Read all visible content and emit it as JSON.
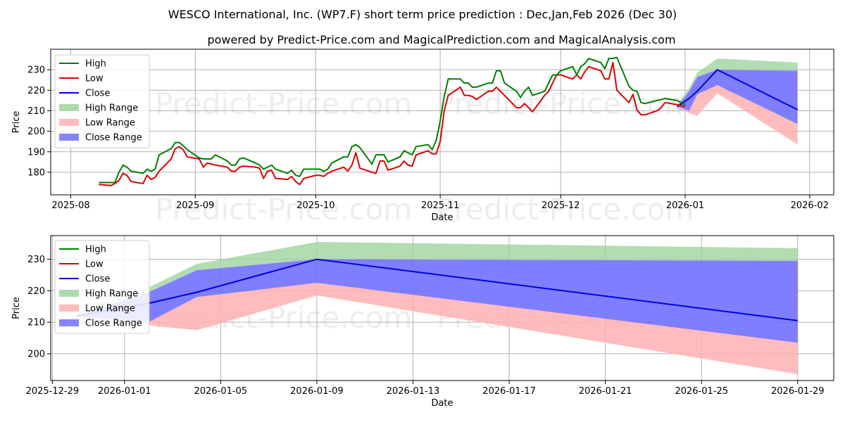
{
  "chart_data": {
    "type": "line",
    "title": "WESCO International, Inc. (WP7.F) short term price prediction : Dec,Jan,Feb 2026 (Dec 30)",
    "subtitle": "powered by Predict-Price.com and MagicalPrediction.com and MagicalAnalysis.com",
    "watermark": "Predict-Price.com",
    "colors": {
      "high": "#008000",
      "low": "#e00000",
      "close": "#0000e0",
      "high_range": "#9fd39f",
      "low_range": "#ffb0b0",
      "close_range": "#7070ff"
    },
    "legend": [
      "High",
      "Low",
      "Close",
      "High Range",
      "Low Range",
      "Close Range"
    ],
    "panels": [
      {
        "id": "overview",
        "xlabel": "Date",
        "ylabel": "Price",
        "x_ticks": [
          "2025-08",
          "2025-09",
          "2025-10",
          "2025-11",
          "2025-12",
          "2026-01",
          "2026-02"
        ],
        "y_ticks": [
          180,
          190,
          200,
          210,
          220,
          230
        ],
        "xlim": [
          "2025-07-27",
          "2026-02-07"
        ],
        "ylim": [
          169,
          240
        ],
        "history": [
          [
            "2025-08-08",
            175,
            174,
            174.5
          ],
          [
            "2025-08-11",
            175,
            173.5,
            174
          ],
          [
            "2025-08-12",
            175,
            174.5,
            175
          ],
          [
            "2025-08-13",
            180,
            176,
            178
          ],
          [
            "2025-08-14",
            183.5,
            179.5,
            181
          ],
          [
            "2025-08-15",
            182.5,
            178.5,
            180
          ],
          [
            "2025-08-16",
            180.5,
            175.5,
            177
          ],
          [
            "2025-08-19",
            179.5,
            174.5,
            176
          ],
          [
            "2025-08-20",
            181.5,
            178.5,
            180
          ],
          [
            "2025-08-21",
            180.5,
            176.5,
            178
          ],
          [
            "2025-08-22",
            181.5,
            177.5,
            179
          ],
          [
            "2025-08-23",
            188.5,
            180.5,
            185
          ],
          [
            "2025-08-26",
            191.5,
            186.5,
            189
          ],
          [
            "2025-08-27",
            194.5,
            191.5,
            193
          ],
          [
            "2025-08-28",
            194.5,
            192.5,
            193
          ],
          [
            "2025-08-29",
            193,
            191,
            192
          ],
          [
            "2025-08-30",
            191,
            187.5,
            189
          ],
          [
            "2025-09-02",
            187,
            186.5,
            187
          ],
          [
            "2025-09-03",
            186.5,
            182.5,
            184
          ],
          [
            "2025-09-04",
            186.5,
            184.5,
            185
          ],
          [
            "2025-09-05",
            186.5,
            184,
            185
          ],
          [
            "2025-09-06",
            188.5,
            183.5,
            186
          ],
          [
            "2025-09-09",
            185.5,
            182.5,
            184
          ],
          [
            "2025-09-10",
            183.5,
            180.5,
            182
          ],
          [
            "2025-09-11",
            183.5,
            180.5,
            182
          ],
          [
            "2025-09-12",
            186.5,
            182.5,
            184
          ],
          [
            "2025-09-13",
            187,
            183,
            185
          ],
          [
            "2025-09-16",
            184.5,
            182.5,
            183
          ],
          [
            "2025-09-17",
            183.5,
            182,
            182.5
          ],
          [
            "2025-09-18",
            181.5,
            177,
            179
          ],
          [
            "2025-09-19",
            182.5,
            180.5,
            181
          ],
          [
            "2025-09-20",
            183.5,
            181,
            182
          ],
          [
            "2025-09-21",
            181.5,
            177,
            179
          ],
          [
            "2025-09-24",
            179.5,
            176.5,
            178
          ],
          [
            "2025-09-25",
            181,
            178,
            179.5
          ],
          [
            "2025-09-26",
            178.5,
            175.5,
            177
          ],
          [
            "2025-09-27",
            178,
            174,
            176
          ],
          [
            "2025-09-28",
            181.5,
            177,
            179
          ],
          [
            "2025-10-01",
            181.5,
            178.5,
            180
          ],
          [
            "2025-10-02",
            181.5,
            178.5,
            180
          ],
          [
            "2025-10-03",
            180.5,
            178,
            179
          ],
          [
            "2025-10-04",
            181.5,
            179.5,
            180.5
          ],
          [
            "2025-10-05",
            184.5,
            180.5,
            182
          ],
          [
            "2025-10-08",
            187.5,
            182.5,
            185
          ],
          [
            "2025-10-09",
            187.5,
            180.5,
            184
          ],
          [
            "2025-10-10",
            192.5,
            183.5,
            188
          ],
          [
            "2025-10-11",
            193.5,
            189.5,
            191
          ],
          [
            "2025-10-12",
            192,
            182,
            186
          ],
          [
            "2025-10-15",
            184,
            180,
            182
          ],
          [
            "2025-10-16",
            188.5,
            179.5,
            184
          ],
          [
            "2025-10-17",
            188.5,
            185.5,
            187
          ],
          [
            "2025-10-18",
            188.5,
            185.5,
            187
          ],
          [
            "2025-10-19",
            185,
            181,
            183
          ],
          [
            "2025-10-22",
            187.5,
            183,
            185
          ],
          [
            "2025-10-23",
            190.5,
            185.5,
            188
          ],
          [
            "2025-10-24",
            189.5,
            183.5,
            186
          ],
          [
            "2025-10-25",
            188.5,
            183,
            186
          ],
          [
            "2025-10-26",
            192.5,
            188.5,
            190
          ],
          [
            "2025-10-29",
            193.5,
            190.5,
            192
          ],
          [
            "2025-10-30",
            191,
            189,
            190
          ],
          [
            "2025-10-31",
            195.5,
            189,
            192
          ],
          [
            "2025-11-01",
            205,
            195,
            200
          ],
          [
            "2025-11-02",
            217,
            210,
            214
          ],
          [
            "2025-11-03",
            225.5,
            217.5,
            221
          ],
          [
            "2025-11-06",
            225.5,
            221.5,
            223
          ],
          [
            "2025-11-07",
            223.5,
            217.5,
            220
          ],
          [
            "2025-11-08",
            223.5,
            217.5,
            220
          ],
          [
            "2025-11-09",
            221.5,
            217,
            219
          ],
          [
            "2025-11-10",
            221.5,
            215.5,
            218
          ],
          [
            "2025-11-13",
            223.5,
            219.5,
            221
          ],
          [
            "2025-11-14",
            223.5,
            219.5,
            221
          ],
          [
            "2025-11-15",
            229.5,
            221.5,
            225
          ],
          [
            "2025-11-16",
            229.5,
            219.5,
            223
          ],
          [
            "2025-11-17",
            223.5,
            217.5,
            220
          ],
          [
            "2025-11-20",
            219.5,
            211.5,
            215
          ],
          [
            "2025-11-21",
            216.5,
            211.5,
            214
          ],
          [
            "2025-11-22",
            219.5,
            213.5,
            216
          ],
          [
            "2025-11-23",
            221.5,
            211.5,
            216
          ],
          [
            "2025-11-24",
            217.5,
            209.5,
            213
          ],
          [
            "2025-11-27",
            219.5,
            217.5,
            218
          ],
          [
            "2025-11-28",
            223.5,
            219.5,
            221
          ],
          [
            "2025-11-29",
            227.5,
            223.5,
            225
          ],
          [
            "2025-11-30",
            227.5,
            227.5,
            227.5
          ],
          [
            "2025-12-01",
            229.5,
            227.5,
            228
          ],
          [
            "2025-12-04",
            231.5,
            225.5,
            228
          ],
          [
            "2025-12-05",
            227.5,
            227.5,
            227.5
          ],
          [
            "2025-12-06",
            231.5,
            225.5,
            228
          ],
          [
            "2025-12-07",
            233,
            229,
            231
          ],
          [
            "2025-12-08",
            235.5,
            231.5,
            233
          ],
          [
            "2025-12-11",
            233.5,
            229.5,
            231
          ],
          [
            "2025-12-12",
            230.5,
            225.5,
            228
          ],
          [
            "2025-12-13",
            235.5,
            225.5,
            230
          ],
          [
            "2025-12-14",
            235.5,
            233.5,
            234
          ],
          [
            "2025-12-15",
            236,
            220,
            227
          ],
          [
            "2025-12-18",
            222,
            214,
            218
          ],
          [
            "2025-12-19",
            220,
            218,
            219
          ],
          [
            "2025-12-20",
            219.5,
            210.5,
            215
          ],
          [
            "2025-12-21",
            214,
            208,
            211
          ],
          [
            "2025-12-22",
            213.5,
            208,
            211
          ],
          [
            "2025-12-25",
            215,
            210,
            212
          ],
          [
            "2025-12-26",
            215.5,
            211.5,
            213
          ],
          [
            "2025-12-27",
            216,
            214,
            215
          ],
          [
            "2025-12-30",
            215,
            213,
            214
          ],
          [
            "2026-01-01",
            213,
            212,
            212.5
          ]
        ]
      },
      {
        "id": "forecast",
        "xlabel": "Date",
        "ylabel": "Price",
        "x_ticks": [
          "2025-12-29",
          "2026-01-01",
          "2026-01-05",
          "2026-01-09",
          "2026-01-13",
          "2026-01-17",
          "2026-01-21",
          "2026-01-25",
          "2026-01-29"
        ],
        "y_ticks": [
          200,
          210,
          220,
          230
        ],
        "xlim": [
          "2025-12-28.93",
          "2026-01-30.5"
        ],
        "ylim": [
          191.5,
          237.5
        ]
      }
    ],
    "forecast": [
      {
        "date": "2025-12-30",
        "close": 212,
        "close_lo": 212,
        "close_hi": 212,
        "high_hi": 213,
        "low_lo": 211
      },
      {
        "date": "2026-01-02",
        "close": 216,
        "close_lo": 210,
        "close_hi": 219.5,
        "high_hi": 221,
        "low_lo": 209
      },
      {
        "date": "2026-01-04",
        "close": 219.5,
        "close_lo": 218,
        "close_hi": 226.5,
        "high_hi": 228.5,
        "low_lo": 207.5
      },
      {
        "date": "2026-01-09",
        "close": 230,
        "close_lo": 222.5,
        "close_hi": 230,
        "high_hi": 235.5,
        "low_lo": 218.5
      },
      {
        "date": "2026-01-29",
        "close": 210.5,
        "close_lo": 203.5,
        "close_hi": 229.5,
        "high_hi": 233.5,
        "low_lo": 193.5
      }
    ]
  }
}
